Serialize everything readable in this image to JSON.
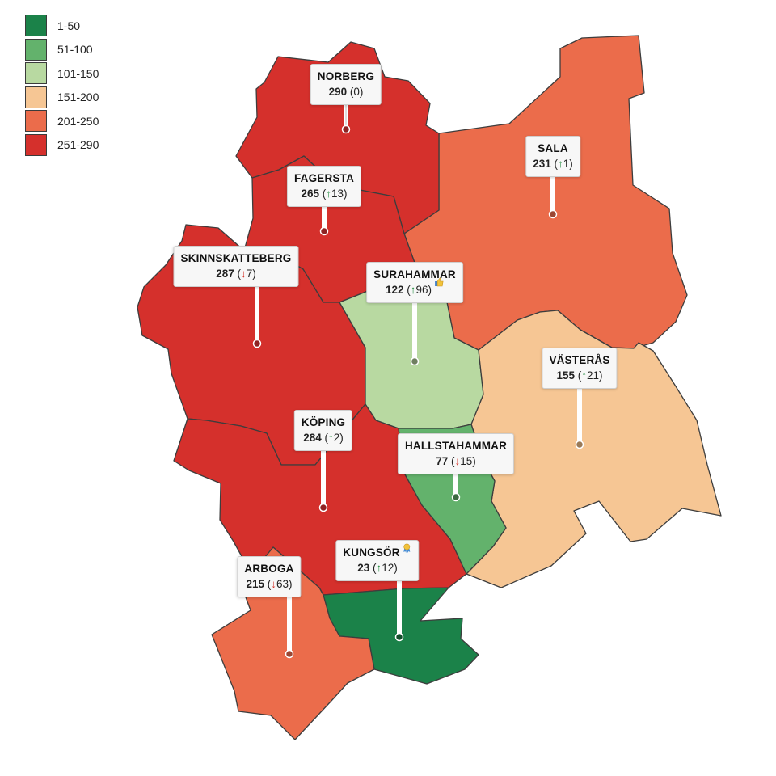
{
  "legend": [
    {
      "label": "1-50",
      "color": "#1b8249"
    },
    {
      "label": "51-100",
      "color": "#63b26c"
    },
    {
      "label": "101-150",
      "color": "#b8d9a1"
    },
    {
      "label": "151-200",
      "color": "#f6c694"
    },
    {
      "label": "201-250",
      "color": "#eb6c4b"
    },
    {
      "label": "251-290",
      "color": "#d5302c"
    }
  ],
  "municipalities": [
    {
      "id": "norberg",
      "name": "NORBERG",
      "rank": "290",
      "change_open": "(",
      "change_arrow": "",
      "change_value": "0",
      "change_close": ")",
      "direction": "none",
      "color": "#d5302c"
    },
    {
      "id": "fagersta",
      "name": "FAGERSTA",
      "rank": "265",
      "change_open": "(",
      "change_arrow": "↑",
      "change_value": "13",
      "change_close": ")",
      "direction": "up",
      "color": "#d5302c"
    },
    {
      "id": "sala",
      "name": "SALA",
      "rank": "231",
      "change_open": "(",
      "change_arrow": "↑",
      "change_value": "1",
      "change_close": ")",
      "direction": "up",
      "color": "#eb6c4b"
    },
    {
      "id": "skinnskatteberg",
      "name": "SKINNSKATTEBERG",
      "rank": "287",
      "change_open": "(",
      "change_arrow": "↓",
      "change_value": "7",
      "change_close": ")",
      "direction": "down",
      "color": "#d5302c"
    },
    {
      "id": "surahammar",
      "name": "SURAHAMMAR",
      "rank": "122",
      "change_open": "(",
      "change_arrow": "↑",
      "change_value": "96",
      "change_close": ")",
      "direction": "up",
      "color": "#b8d9a1",
      "badge": "thumbs-up-icon"
    },
    {
      "id": "vasteras",
      "name": "VÄSTERÅS",
      "rank": "155",
      "change_open": "(",
      "change_arrow": "↑",
      "change_value": "21",
      "change_close": ")",
      "direction": "up",
      "color": "#f6c694"
    },
    {
      "id": "koping",
      "name": "KÖPING",
      "rank": "284",
      "change_open": "(",
      "change_arrow": "↑",
      "change_value": "2",
      "change_close": ")",
      "direction": "up",
      "color": "#d5302c"
    },
    {
      "id": "hallstahammar",
      "name": "HALLSTAHAMMAR",
      "rank": "77",
      "change_open": "(",
      "change_arrow": "↓",
      "change_value": "15",
      "change_close": ")",
      "direction": "down",
      "color": "#63b26c"
    },
    {
      "id": "kungsor",
      "name": "KUNGSÖR",
      "rank": "23",
      "change_open": "(",
      "change_arrow": "↑",
      "change_value": "12",
      "change_close": ")",
      "direction": "up",
      "color": "#1b8249",
      "badge": "medal-icon"
    },
    {
      "id": "arboga",
      "name": "ARBOGA",
      "rank": "215",
      "change_open": "(",
      "change_arrow": "↓",
      "change_value": "63",
      "change_close": ")",
      "direction": "down",
      "color": "#eb6c4b"
    }
  ]
}
